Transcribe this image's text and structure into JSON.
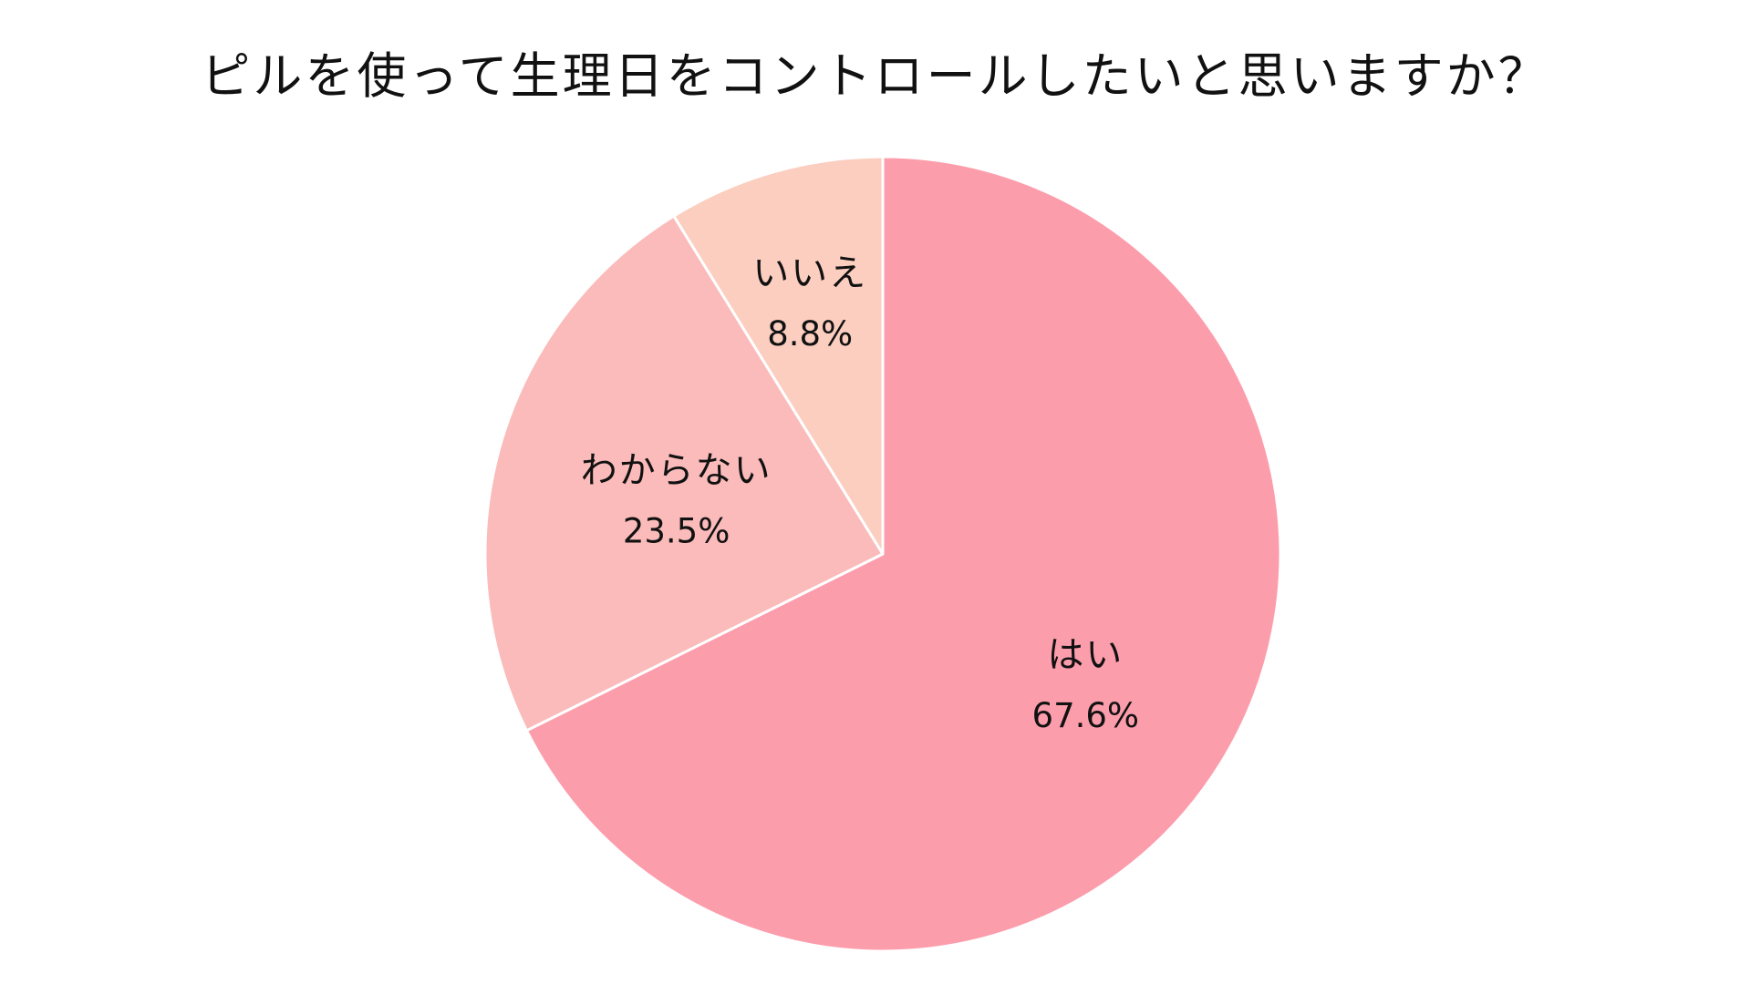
{
  "chart_data": {
    "type": "pie",
    "title": "ピルを使って生理日をコントロールしたいと思いますか？",
    "start": "12 o'clock, clockwise",
    "slices": [
      {
        "label": "はい",
        "value": 67.6,
        "value_text": "67.6%",
        "color": "#FC9DAC"
      },
      {
        "label": "わからない",
        "value": 23.5,
        "value_text": "23.5%",
        "color": "#FABBBA"
      },
      {
        "label": "いいえ",
        "value": 8.8,
        "value_text": "8.8%",
        "color": "#FBCEC0"
      }
    ]
  }
}
